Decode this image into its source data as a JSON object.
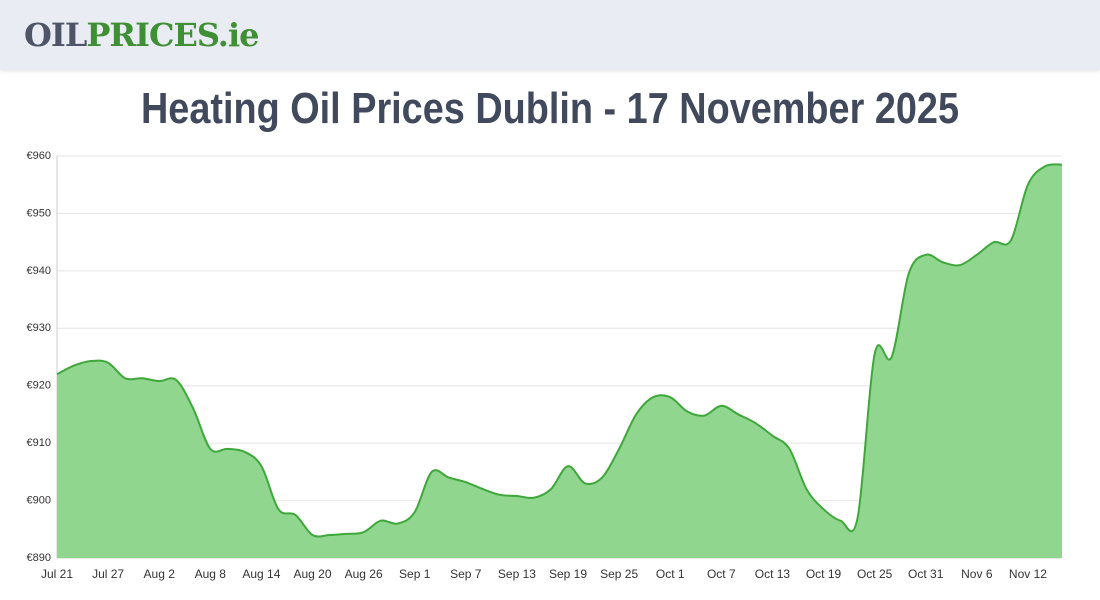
{
  "header": {
    "logo_oil": "OIL",
    "logo_prices": "PRICES",
    "logo_tld": ".ie"
  },
  "chart_data": {
    "type": "area",
    "title": "Heating Oil Prices Dublin - 17 November 2025",
    "categories": [
      "Jul 21",
      null,
      null,
      "Jul 27",
      null,
      null,
      "Aug 2",
      null,
      null,
      "Aug 8",
      null,
      null,
      "Aug 14",
      null,
      null,
      "Aug 20",
      null,
      null,
      "Aug 26",
      null,
      null,
      "Sep 1",
      null,
      null,
      "Sep 7",
      null,
      null,
      "Sep 13",
      null,
      null,
      "Sep 19",
      null,
      null,
      "Sep 25",
      null,
      null,
      "Oct 1",
      null,
      null,
      "Oct 7",
      null,
      null,
      "Oct 13",
      null,
      null,
      "Oct 19",
      null,
      null,
      "Oct 25",
      null,
      null,
      "Oct 31",
      null,
      null,
      "Nov 6",
      null,
      null,
      "Nov 12",
      null,
      null
    ],
    "values": [
      922,
      923.5,
      924.3,
      924,
      921.3,
      921.3,
      920.8,
      921,
      916,
      909,
      909,
      908.5,
      906,
      898.5,
      897.5,
      894,
      894,
      894.2,
      894.5,
      896.5,
      896,
      898,
      905,
      904,
      903.2,
      902,
      901,
      900.8,
      900.5,
      902,
      906,
      903,
      904,
      909,
      915,
      918,
      918,
      915.5,
      914.8,
      916.5,
      915,
      913.5,
      911.3,
      909,
      902,
      898.5,
      896.5,
      897,
      925.5,
      925,
      939.5,
      942.8,
      941.5,
      941,
      942.8,
      945,
      945.3,
      955,
      958.2,
      958.5
    ],
    "color": "#3ea83a",
    "fill": "#90d68f",
    "ylim": [
      890,
      960
    ],
    "yticks": [
      {
        "value": 890,
        "label": "€890"
      },
      {
        "value": 900,
        "label": "€900"
      },
      {
        "value": 910,
        "label": "€910"
      },
      {
        "value": 920,
        "label": "€920"
      },
      {
        "value": 930,
        "label": "€930"
      },
      {
        "value": 940,
        "label": "€940"
      },
      {
        "value": 950,
        "label": "€950"
      },
      {
        "value": 960,
        "label": "€960"
      }
    ],
    "grid": true
  }
}
